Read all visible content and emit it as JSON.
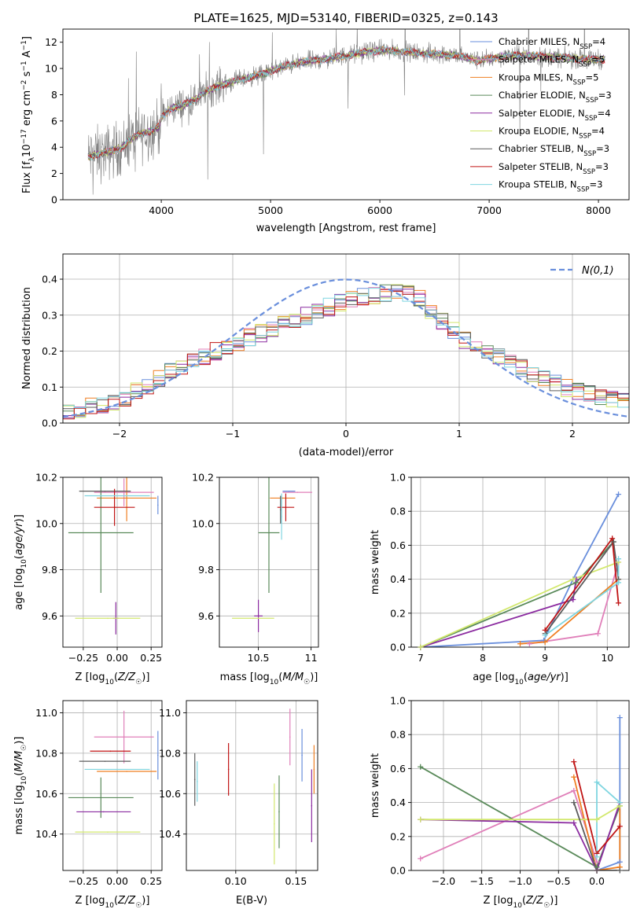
{
  "figure": {
    "title": "PLATE=1625, MJD=53140, FIBERID=0325, z=0.143"
  },
  "colors": {
    "chabrier_miles": "#6a8fdc",
    "salpeter_miles": "#e07fb9",
    "kroupa_miles": "#ef7f22",
    "chabrier_elodie": "#5a8a5a",
    "salpeter_elodie": "#8b2ba0",
    "kroupa_elodie": "#d2e86d",
    "chabrier_stelib": "#5c5c5c",
    "salpeter_stelib": "#c01414",
    "kroupa_stelib": "#7fd5e0",
    "data": "#808080",
    "gauss": "#6a8fdc",
    "grid": "#b0b0b0"
  },
  "legend_models": [
    {
      "key": "chabrier_miles",
      "label": "Chabrier MILES, N_SSP=4",
      "main": "Chabrier MILES, N",
      "sub": "SSP",
      "tail": "=4"
    },
    {
      "key": "salpeter_miles",
      "label": "Salpeter MILES, N_SSP=5",
      "main": "Salpeter MILES, N",
      "sub": "SSP",
      "tail": "=5"
    },
    {
      "key": "kroupa_miles",
      "label": "Kroupa MILES, N_SSP=5",
      "main": "Kroupa MILES, N",
      "sub": "SSP",
      "tail": "=5"
    },
    {
      "key": "chabrier_elodie",
      "label": "Chabrier ELODIE, N_SSP=3",
      "main": "Chabrier ELODIE, N",
      "sub": "SSP",
      "tail": "=3"
    },
    {
      "key": "salpeter_elodie",
      "label": "Salpeter ELODIE, N_SSP=4",
      "main": "Salpeter ELODIE, N",
      "sub": "SSP",
      "tail": "=4"
    },
    {
      "key": "kroupa_elodie",
      "label": "Kroupa ELODIE, N_SSP=4",
      "main": "Kroupa ELODIE, N",
      "sub": "SSP",
      "tail": "=4"
    },
    {
      "key": "chabrier_stelib",
      "label": "Chabrier STELIB, N_SSP=3",
      "main": "Chabrier STELIB, N",
      "sub": "SSP",
      "tail": "=3"
    },
    {
      "key": "salpeter_stelib",
      "label": "Salpeter STELIB, N_SSP=3",
      "main": "Salpeter STELIB, N",
      "sub": "SSP",
      "tail": "=3"
    },
    {
      "key": "kroupa_stelib",
      "label": "Kroupa STELIB, N_SSP=3",
      "main": "Kroupa STELIB, N",
      "sub": "SSP",
      "tail": "=3"
    }
  ],
  "chart_data": [
    {
      "id": "spectrum",
      "type": "line",
      "title": "PLATE=1625, MJD=53140, FIBERID=0325, z=0.143",
      "xlabel": "wavelength [Angstrom, rest frame]",
      "ylabel": "Flux [f_λ 10^-17 erg cm^-2 s^-1 A^-1]",
      "xlim": [
        3100,
        8280
      ],
      "ylim": [
        0,
        13
      ],
      "xticks": [
        4000,
        5000,
        6000,
        7000,
        8000
      ],
      "yticks": [
        0,
        2,
        4,
        6,
        8,
        10,
        12
      ],
      "legend_position": "upper right",
      "data_wavelength_range": [
        3330,
        8060
      ],
      "continuum": {
        "x": [
          3330,
          3500,
          3650,
          3700,
          3800,
          3900,
          3980,
          4000,
          4100,
          4200,
          4300,
          4400,
          4500,
          4700,
          4900,
          5100,
          5300,
          5500,
          5700,
          5900,
          6100,
          6300,
          6500,
          6700,
          6900,
          7100,
          7300,
          7500,
          7700,
          7900,
          8060
        ],
        "y": [
          3.3,
          3.6,
          4.0,
          4.5,
          5.0,
          5.2,
          5.6,
          6.3,
          7.0,
          7.2,
          7.6,
          8.2,
          8.6,
          9.1,
          9.5,
          10.1,
          10.5,
          10.7,
          11.0,
          11.3,
          11.4,
          11.2,
          11.1,
          11.0,
          10.6,
          10.9,
          11.0,
          10.9,
          10.8,
          10.7,
          10.7
        ]
      }
    },
    {
      "id": "residuals",
      "type": "line",
      "xlabel": "(data-model)/error",
      "ylabel": "Normed distribution",
      "xlim": [
        -2.5,
        2.5
      ],
      "ylim": [
        0,
        0.47
      ],
      "xticks": [
        -2,
        -1,
        0,
        1,
        2
      ],
      "yticks": [
        0.0,
        0.1,
        0.2,
        0.3,
        0.4
      ],
      "legend": "N(0,1)",
      "legend_position": "upper right",
      "bin_width": 0.1,
      "histogram_envelope": {
        "x": [
          -2.5,
          -2.0,
          -1.5,
          -1.0,
          -0.5,
          0.0,
          0.3,
          0.6,
          1.0,
          1.5,
          2.0,
          2.5
        ],
        "y": [
          0.03,
          0.06,
          0.15,
          0.22,
          0.28,
          0.34,
          0.36,
          0.36,
          0.24,
          0.16,
          0.09,
          0.06
        ]
      }
    },
    {
      "id": "age_vs_Z",
      "type": "scatter",
      "xlabel": "Z [log10(Z/Z☉)]",
      "ylabel": "age [log10(age/yr)]",
      "xlim": [
        -0.4,
        0.33
      ],
      "ylim": [
        9.465,
        10.2
      ],
      "xticks": [
        -0.25,
        0.0,
        0.25
      ],
      "xtick_labels": [
        "−0.25",
        "0.00",
        "0.25"
      ],
      "yticks": [
        9.6,
        9.8,
        10.0,
        10.2
      ],
      "series": [
        {
          "key": "chabrier_miles",
          "x": 0.3,
          "xerr": 0.0,
          "y": 10.08,
          "yerr": 0.04
        },
        {
          "key": "salpeter_miles",
          "x": 0.05,
          "xerr": 0.22,
          "y": 10.135,
          "yerr": 0.06
        },
        {
          "key": "kroupa_miles",
          "x": 0.07,
          "xerr": 0.22,
          "y": 10.11,
          "yerr": 0.1
        },
        {
          "key": "chabrier_elodie",
          "x": -0.12,
          "xerr": 0.24,
          "y": 9.96,
          "yerr": 0.26
        },
        {
          "key": "salpeter_elodie",
          "x": -0.01,
          "xerr": 0.02,
          "y": 9.59,
          "yerr": 0.07
        },
        {
          "key": "kroupa_elodie",
          "x": -0.07,
          "xerr": 0.24,
          "y": 9.59,
          "yerr": 0.0
        },
        {
          "key": "chabrier_stelib",
          "x": -0.09,
          "xerr": 0.19,
          "y": 10.14,
          "yerr": 0.0
        },
        {
          "key": "salpeter_stelib",
          "x": -0.02,
          "xerr": 0.15,
          "y": 10.07,
          "yerr": 0.08
        },
        {
          "key": "kroupa_stelib",
          "x": 0.0,
          "xerr": 0.24,
          "y": 10.12,
          "yerr": 0.0
        }
      ]
    },
    {
      "id": "age_vs_mass",
      "type": "scatter",
      "xlabel": "mass [log10(M/M☉)]",
      "xlim": [
        10.13,
        11.07
      ],
      "ylim": [
        9.465,
        10.2
      ],
      "xticks": [
        10.5,
        11.0
      ],
      "yticks": [
        9.6,
        9.8,
        10.0,
        10.2
      ],
      "series": [
        {
          "key": "chabrier_miles",
          "x": 10.79,
          "xerr": 0.06,
          "y": 10.14,
          "yerr": 0.0
        },
        {
          "key": "salpeter_miles",
          "x": 10.87,
          "xerr": 0.14,
          "y": 10.135,
          "yerr": 0.0
        },
        {
          "key": "kroupa_miles",
          "x": 10.73,
          "xerr": 0.12,
          "y": 10.11,
          "yerr": 0.0
        },
        {
          "key": "chabrier_elodie",
          "x": 10.6,
          "xerr": 0.1,
          "y": 9.96,
          "yerr": 0.26
        },
        {
          "key": "salpeter_elodie",
          "x": 10.5,
          "xerr": 0.04,
          "y": 9.6,
          "yerr": 0.07
        },
        {
          "key": "kroupa_elodie",
          "x": 10.45,
          "xerr": 0.2,
          "y": 9.59,
          "yerr": 0.0
        },
        {
          "key": "chabrier_stelib",
          "x": 10.71,
          "xerr": 0.0,
          "y": 10.06,
          "yerr": 0.06
        },
        {
          "key": "salpeter_stelib",
          "x": 10.76,
          "xerr": 0.08,
          "y": 10.07,
          "yerr": 0.06
        },
        {
          "key": "kroupa_stelib",
          "x": 10.72,
          "xerr": 0.0,
          "y": 10.03,
          "yerr": 0.1
        }
      ]
    },
    {
      "id": "massweight_vs_age",
      "type": "line",
      "xlabel": "age [log10(age/yr)]",
      "ylabel": "mass weight",
      "xlim": [
        6.85,
        10.35
      ],
      "ylim": [
        0.0,
        1.0
      ],
      "xticks": [
        7,
        8,
        9,
        10
      ],
      "yticks": [
        0.0,
        0.2,
        0.4,
        0.6,
        0.8,
        1.0
      ],
      "series": [
        {
          "key": "chabrier_miles",
          "x": [
            7.0,
            8.98,
            9.45,
            10.18
          ],
          "y": [
            0.0,
            0.04,
            0.4,
            0.9
          ]
        },
        {
          "key": "salpeter_miles",
          "x": [
            8.75,
            9.85,
            10.18
          ],
          "y": [
            0.02,
            0.08,
            0.5
          ]
        },
        {
          "key": "kroupa_miles",
          "x": [
            8.6,
            9.0,
            10.18
          ],
          "y": [
            0.02,
            0.03,
            0.4
          ]
        },
        {
          "key": "chabrier_elodie",
          "x": [
            7.0,
            9.5,
            10.1
          ],
          "y": [
            0.0,
            0.38,
            0.62
          ]
        },
        {
          "key": "salpeter_elodie",
          "x": [
            7.0,
            9.45,
            9.5
          ],
          "y": [
            0.0,
            0.28,
            0.4
          ]
        },
        {
          "key": "kroupa_elodie",
          "x": [
            7.0,
            9.45,
            10.18
          ],
          "y": [
            0.0,
            0.4,
            0.5
          ]
        },
        {
          "key": "chabrier_stelib",
          "x": [
            9.0,
            10.1,
            10.18
          ],
          "y": [
            0.08,
            0.62,
            0.4
          ]
        },
        {
          "key": "salpeter_stelib",
          "x": [
            9.0,
            10.08,
            10.18
          ],
          "y": [
            0.1,
            0.64,
            0.26
          ]
        },
        {
          "key": "kroupa_stelib",
          "x": [
            9.0,
            10.18,
            10.18
          ],
          "y": [
            0.07,
            0.38,
            0.52
          ]
        }
      ]
    },
    {
      "id": "mass_vs_Z",
      "type": "scatter",
      "xlabel": "Z [log10(Z/Z☉)]",
      "ylabel": "mass [log10(M/M☉)]",
      "xlim": [
        -0.4,
        0.33
      ],
      "ylim": [
        10.22,
        11.06
      ],
      "xticks": [
        -0.25,
        0.0,
        0.25
      ],
      "xtick_labels": [
        "−0.25",
        "0.00",
        "0.25"
      ],
      "yticks": [
        10.4,
        10.6,
        10.8,
        11.0
      ],
      "series": [
        {
          "key": "chabrier_miles",
          "x": 0.3,
          "xerr": 0.0,
          "y": 10.79,
          "yerr": 0.12
        },
        {
          "key": "salpeter_miles",
          "x": 0.05,
          "xerr": 0.22,
          "y": 10.88,
          "yerr": 0.13
        },
        {
          "key": "kroupa_miles",
          "x": 0.07,
          "xerr": 0.22,
          "y": 10.71,
          "yerr": 0.0
        },
        {
          "key": "chabrier_elodie",
          "x": -0.12,
          "xerr": 0.24,
          "y": 10.58,
          "yerr": 0.1
        },
        {
          "key": "salpeter_elodie",
          "x": -0.1,
          "xerr": 0.2,
          "y": 10.51,
          "yerr": 0.0
        },
        {
          "key": "kroupa_elodie",
          "x": -0.07,
          "xerr": 0.24,
          "y": 10.41,
          "yerr": 0.0
        },
        {
          "key": "chabrier_stelib",
          "x": -0.09,
          "xerr": 0.19,
          "y": 10.76,
          "yerr": 0.0
        },
        {
          "key": "salpeter_stelib",
          "x": -0.05,
          "xerr": 0.15,
          "y": 10.81,
          "yerr": 0.0
        },
        {
          "key": "kroupa_stelib",
          "x": 0.0,
          "xerr": 0.24,
          "y": 10.72,
          "yerr": 0.0
        }
      ]
    },
    {
      "id": "mass_vs_EBV",
      "type": "scatter",
      "xlabel": "E(B-V)",
      "xlim": [
        0.059,
        0.168
      ],
      "ylim": [
        10.22,
        11.06
      ],
      "xticks": [
        0.1,
        0.15
      ],
      "xtick_labels": [
        "0.10",
        "0.15"
      ],
      "yticks": [
        10.4,
        10.6,
        10.8,
        11.0
      ],
      "series": [
        {
          "key": "chabrier_miles",
          "x": 0.155,
          "y": 10.79,
          "yerr": 0.13
        },
        {
          "key": "salpeter_miles",
          "x": 0.145,
          "y": 10.88,
          "yerr": 0.14
        },
        {
          "key": "kroupa_miles",
          "x": 0.165,
          "y": 10.72,
          "yerr": 0.12
        },
        {
          "key": "chabrier_elodie",
          "x": 0.136,
          "y": 10.51,
          "yerr": 0.18
        },
        {
          "key": "salpeter_elodie",
          "x": 0.163,
          "y": 10.54,
          "yerr": 0.18
        },
        {
          "key": "kroupa_elodie",
          "x": 0.132,
          "y": 10.45,
          "yerr": 0.2
        },
        {
          "key": "chabrier_stelib",
          "x": 0.066,
          "y": 10.67,
          "yerr": 0.13
        },
        {
          "key": "salpeter_stelib",
          "x": 0.094,
          "y": 10.72,
          "yerr": 0.13
        },
        {
          "key": "kroupa_stelib",
          "x": 0.068,
          "y": 10.66,
          "yerr": 0.1
        }
      ]
    },
    {
      "id": "massweight_vs_Z",
      "type": "line",
      "xlabel": "Z [log10(Z/Z☉)]",
      "ylabel": "mass weight",
      "xlim": [
        -2.42,
        0.42
      ],
      "ylim": [
        0.0,
        1.0
      ],
      "xticks": [
        -2.0,
        -1.5,
        -1.0,
        -0.5,
        0.0
      ],
      "xtick_labels": [
        "−2.0",
        "−1.5",
        "−1.0",
        "−0.5",
        "0.0"
      ],
      "yticks": [
        0.0,
        0.2,
        0.4,
        0.6,
        0.8,
        1.0
      ],
      "series": [
        {
          "key": "chabrier_miles",
          "x": [
            0.0,
            0.3,
            0.3
          ],
          "y": [
            0.0,
            0.05,
            0.9
          ]
        },
        {
          "key": "salpeter_miles",
          "x": [
            -2.3,
            -0.3,
            0.0
          ],
          "y": [
            0.07,
            0.47,
            0.05
          ]
        },
        {
          "key": "kroupa_miles",
          "x": [
            -0.3,
            0.0,
            0.3,
            0.3
          ],
          "y": [
            0.55,
            0.0,
            0.02,
            0.4
          ]
        },
        {
          "key": "chabrier_elodie",
          "x": [
            -2.3,
            0.0,
            0.3
          ],
          "y": [
            0.61,
            0.02,
            0.38
          ]
        },
        {
          "key": "salpeter_elodie",
          "x": [
            -2.3,
            -0.3,
            0.0,
            0.3
          ],
          "y": [
            0.3,
            0.28,
            0.0,
            0.4
          ]
        },
        {
          "key": "kroupa_elodie",
          "x": [
            -2.3,
            0.0,
            0.3
          ],
          "y": [
            0.3,
            0.3,
            0.38
          ]
        },
        {
          "key": "chabrier_stelib",
          "x": [
            -0.3,
            0.0,
            0.3
          ],
          "y": [
            0.4,
            0.0,
            0.0
          ]
        },
        {
          "key": "salpeter_stelib",
          "x": [
            -0.3,
            0.0,
            0.3
          ],
          "y": [
            0.64,
            0.1,
            0.26
          ]
        },
        {
          "key": "kroupa_stelib",
          "x": [
            0.0,
            0.0,
            0.3
          ],
          "y": [
            0.08,
            0.52,
            0.4
          ]
        }
      ]
    }
  ]
}
